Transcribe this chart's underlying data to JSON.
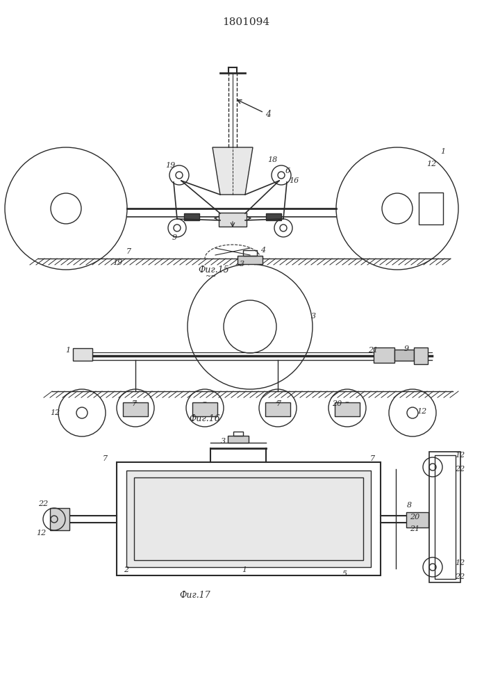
{
  "title": "1801094",
  "title_fontsize": 11,
  "fig_label15": "Фиг.15",
  "fig_label16": "Фиг.16",
  "fig_label17": "Фиг.17",
  "bg_color": "#ffffff",
  "line_color": "#2a2a2a",
  "line_width": 1.0
}
